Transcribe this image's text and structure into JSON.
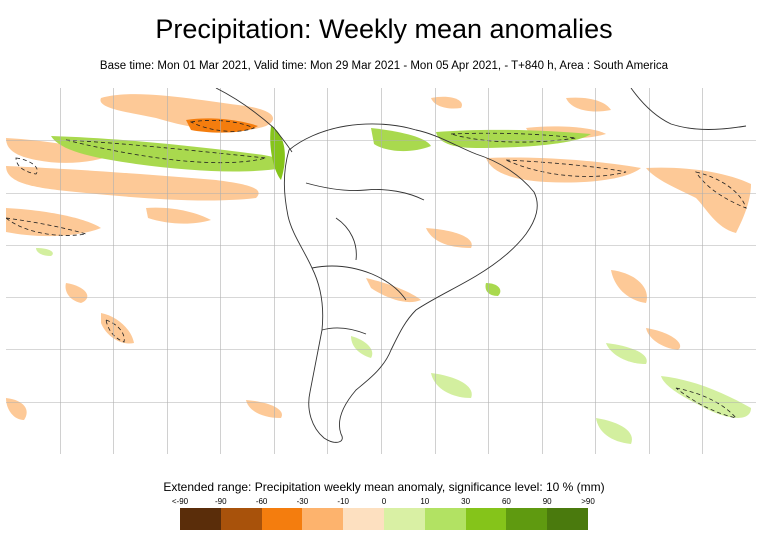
{
  "title": "Precipitation: Weekly mean anomalies",
  "subtitle": "Base time: Mon 01 Mar 2021, Valid time: Mon 29 Mar 2021 - Mon 05 Apr 2021, - T+840 h, Area : South America",
  "legend": {
    "title": "Extended range: Precipitation weekly mean anomaly, significance level: 10 % (mm)",
    "labels": [
      "<-90",
      "-90",
      "-60",
      "-30",
      "-10",
      "0",
      "10",
      "30",
      "60",
      "90",
      ">90"
    ],
    "colors": [
      "#5a2d0a",
      "#a8520b",
      "#f47d0e",
      "#fdb36d",
      "#fde0c0",
      "#d9f0a4",
      "#b2e263",
      "#85c41a",
      "#5f9a10",
      "#4a7a0d"
    ]
  },
  "map": {
    "area": "South America",
    "dry_color": "#fdc997",
    "wet_color": "#a9d94e",
    "wet_light_color": "#d3ef9f",
    "gridline_color": "#b0b0b0",
    "coast_color": "#333333"
  }
}
